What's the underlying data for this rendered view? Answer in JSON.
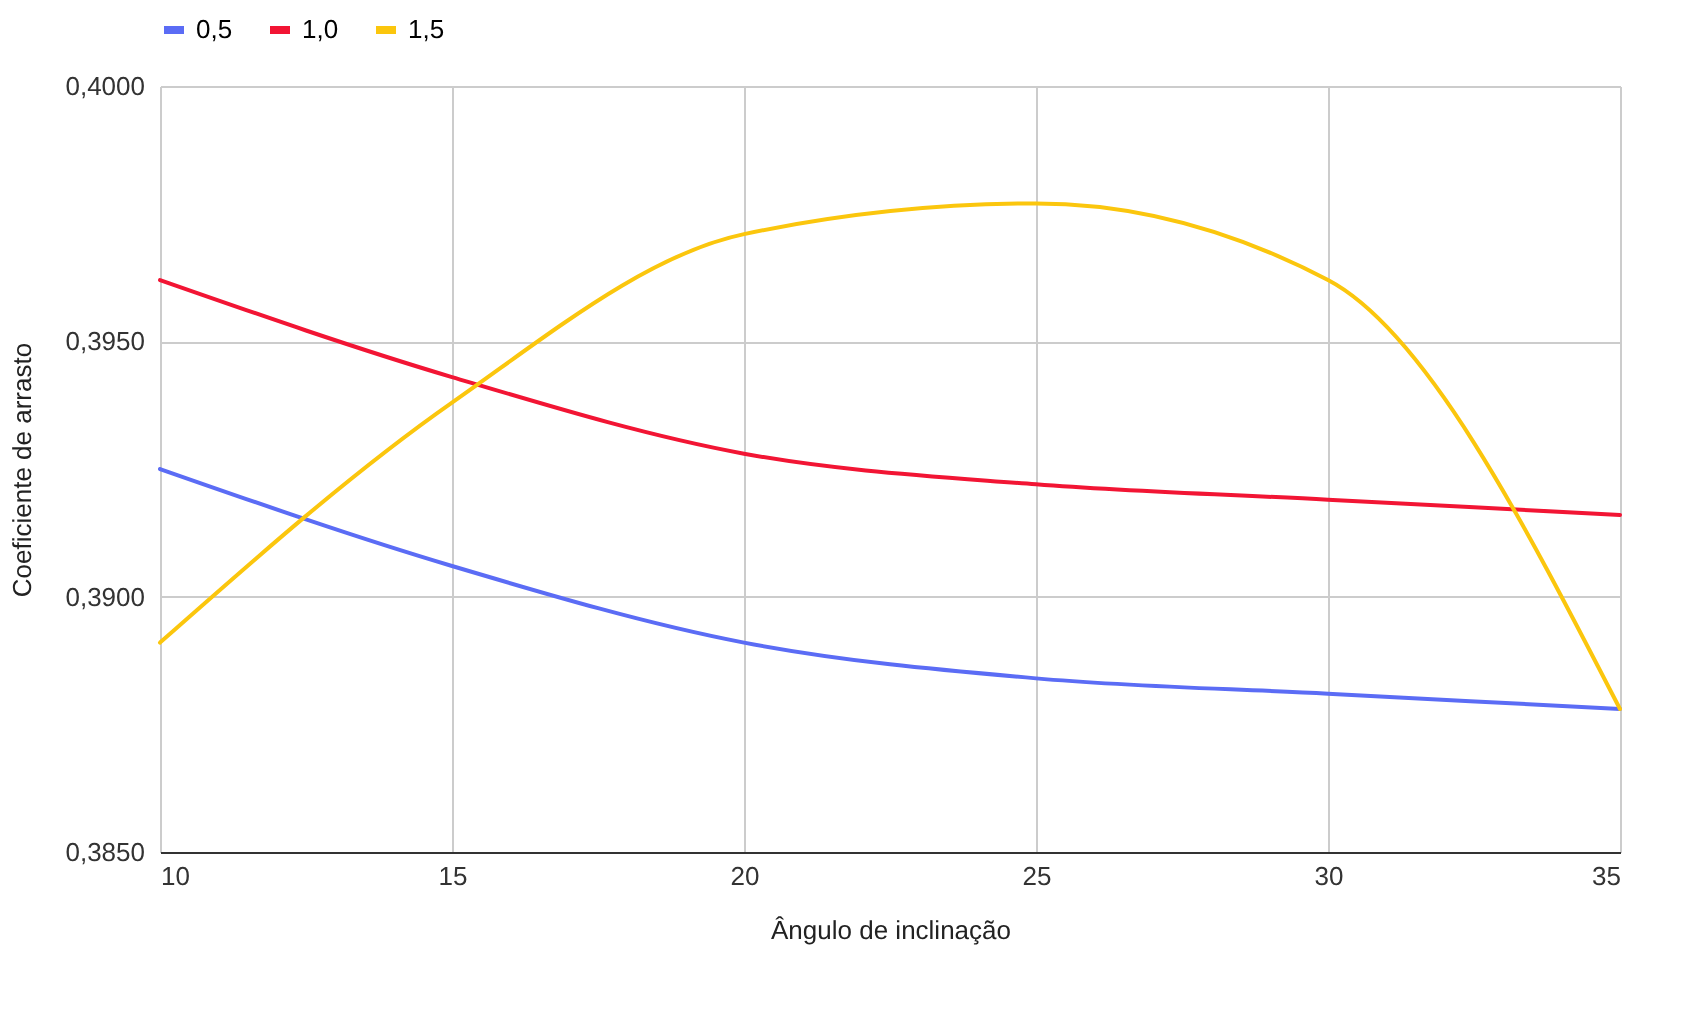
{
  "chart_data": {
    "type": "line",
    "xlabel": "Ângulo de inclinação",
    "ylabel": "Coeficiente de arrasto",
    "x": [
      10,
      15,
      20,
      25,
      30,
      35
    ],
    "series": [
      {
        "name": "0,5",
        "color": "#5b6cf5",
        "values": [
          0.3925,
          0.3906,
          0.3891,
          0.3884,
          0.3881,
          0.3878
        ]
      },
      {
        "name": "1,0",
        "color": "#f21534",
        "values": [
          0.3962,
          0.3943,
          0.3928,
          0.3922,
          0.3919,
          0.3916
        ]
      },
      {
        "name": "1,5",
        "color": "#fbc60d",
        "values": [
          0.3891,
          0.3938,
          0.3971,
          0.3977,
          0.3962,
          0.3878
        ]
      }
    ],
    "xlim": [
      10,
      35
    ],
    "xticks": [
      10,
      15,
      20,
      25,
      30,
      35
    ],
    "ylim": [
      0.385,
      0.4
    ],
    "yticks": [
      {
        "value": 0.385,
        "label": "0,3850"
      },
      {
        "value": 0.39,
        "label": "0,3900"
      },
      {
        "value": 0.395,
        "label": "0,3950"
      },
      {
        "value": 0.4,
        "label": "0,4000"
      }
    ],
    "grid": true,
    "legend": "top",
    "marker": "none",
    "line_style": "solid"
  }
}
